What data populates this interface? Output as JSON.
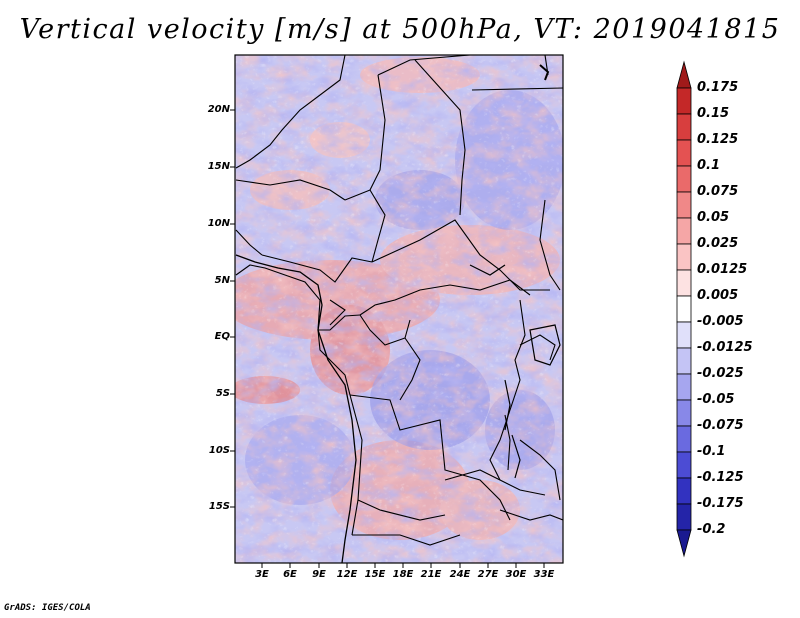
{
  "title": "Vertical velocity [m/s] at 500hPa, VT: 2019041815",
  "footer": "GrADS: IGES/COLA",
  "map": {
    "lat_labels": [
      "20N",
      "15N",
      "10N",
      "5N",
      "EQ",
      "5S",
      "10S",
      "15S"
    ],
    "lon_labels": [
      "3E",
      "6E",
      "9E",
      "12E",
      "15E",
      "18E",
      "21E",
      "24E",
      "27E",
      "30E",
      "33E"
    ]
  },
  "colorbar": {
    "labels": [
      "0.175",
      "0.15",
      "0.125",
      "0.1",
      "0.075",
      "0.05",
      "0.025",
      "0.0125",
      "0.005",
      "-0.005",
      "-0.0125",
      "-0.025",
      "-0.05",
      "-0.075",
      "-0.1",
      "-0.125",
      "-0.175",
      "-0.2"
    ],
    "colors": [
      "#a01a1a",
      "#c42828",
      "#d83e3e",
      "#e45252",
      "#ea6a6a",
      "#f08888",
      "#f5a6a6",
      "#fac4c4",
      "#fde2e2",
      "#ffffff",
      "#e0e0fa",
      "#c4c4f5",
      "#a6a6ef",
      "#8888e8",
      "#6a6ae0",
      "#4c4cd4",
      "#3232c0",
      "#2424a8",
      "#1a1a90"
    ]
  },
  "colors": {
    "warm": "#f0a0a0",
    "cool": "#a8a8ee",
    "neutral": "#dcdcf6"
  }
}
